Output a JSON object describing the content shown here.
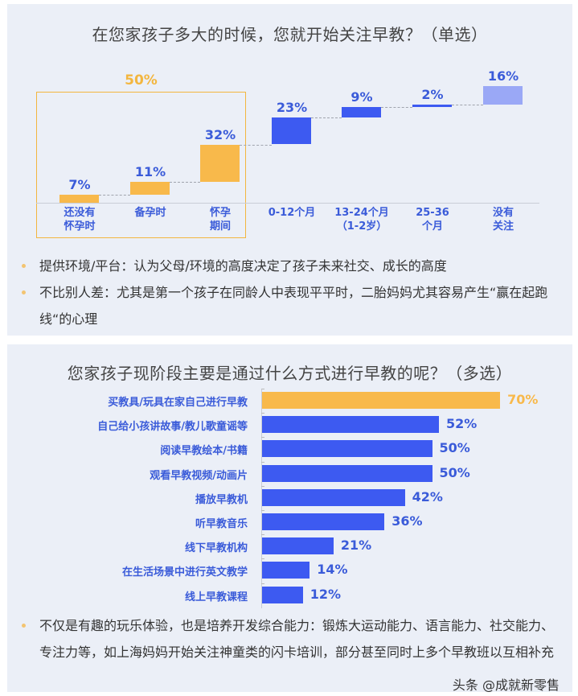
{
  "colors": {
    "orange": "#f8b94b",
    "blue": "#3a5bd9",
    "bar_blue": "#3d5af1",
    "light_blue": "#9aa8f6",
    "panel_bg": "#ebeff7"
  },
  "panel1": {
    "title": "在您家孩子多大的时候，您就开始关注早教？（单选）",
    "group_label": "50%",
    "bullets": [
      "提供环境/平台：认为父母/环境的高度决定了孩子未来社交、成长的高度",
      "不比别人差：尤其是第一个孩子在同龄人中表现平平时，二胎妈妈尤其容易产生“赢在起跑线“的心理"
    ]
  },
  "panel2": {
    "title": "您家孩子现阶段主要是通过什么方式进行早教的呢？（多选）",
    "bullets": [
      "不仅是有趣的玩乐体验，也是培养开发综合能力：锻炼大运动能力、语言能力、社交能力、专注力等，如上海妈妈开始关注神童类的闪卡培训，部分甚至同时上多个早教班以互相补充"
    ],
    "watermark": "头条 @成就新零售"
  },
  "chart_data": [
    {
      "type": "bar",
      "subtype": "waterfall",
      "title": "在您家孩子多大的时候，您就开始关注早教？（单选）",
      "categories": [
        "还没有\n怀孕时",
        "备孕时",
        "怀孕\n期间",
        "0-12个月",
        "13-24个月\n（1-2岁）",
        "25-36\n个月",
        "没有\n关注"
      ],
      "values": [
        7,
        11,
        32,
        23,
        9,
        2,
        16
      ],
      "labels": [
        "7%",
        "11%",
        "32%",
        "23%",
        "9%",
        "2%",
        "16%"
      ],
      "annotations": [
        {
          "text": "50%",
          "spans": [
            "还没有\n怀孕时",
            "备孕时",
            "怀孕\n期间"
          ]
        }
      ],
      "xlabel": "",
      "ylabel": "",
      "ylim": [
        0,
        100
      ],
      "grid": false
    },
    {
      "type": "bar",
      "orientation": "horizontal",
      "title": "您家孩子现阶段主要是通过什么方式进行早教的呢？（多选）",
      "categories": [
        "买教具/玩具在家自己进行早教",
        "自己给小孩讲故事/教儿歌童谣等",
        "阅读早教绘本/书籍",
        "观看早教视频/动画片",
        "播放早教机",
        "听早教音乐",
        "线下早教机构",
        "在生活场景中进行英文教学",
        "线上早教课程"
      ],
      "values": [
        70,
        52,
        50,
        50,
        42,
        36,
        21,
        14,
        12
      ],
      "labels": [
        "70%",
        "52%",
        "50%",
        "50%",
        "42%",
        "36%",
        "21%",
        "14%",
        "12%"
      ],
      "highlight_index": 0,
      "xlabel": "",
      "ylabel": "",
      "xlim": [
        0,
        75
      ],
      "grid": false
    }
  ]
}
